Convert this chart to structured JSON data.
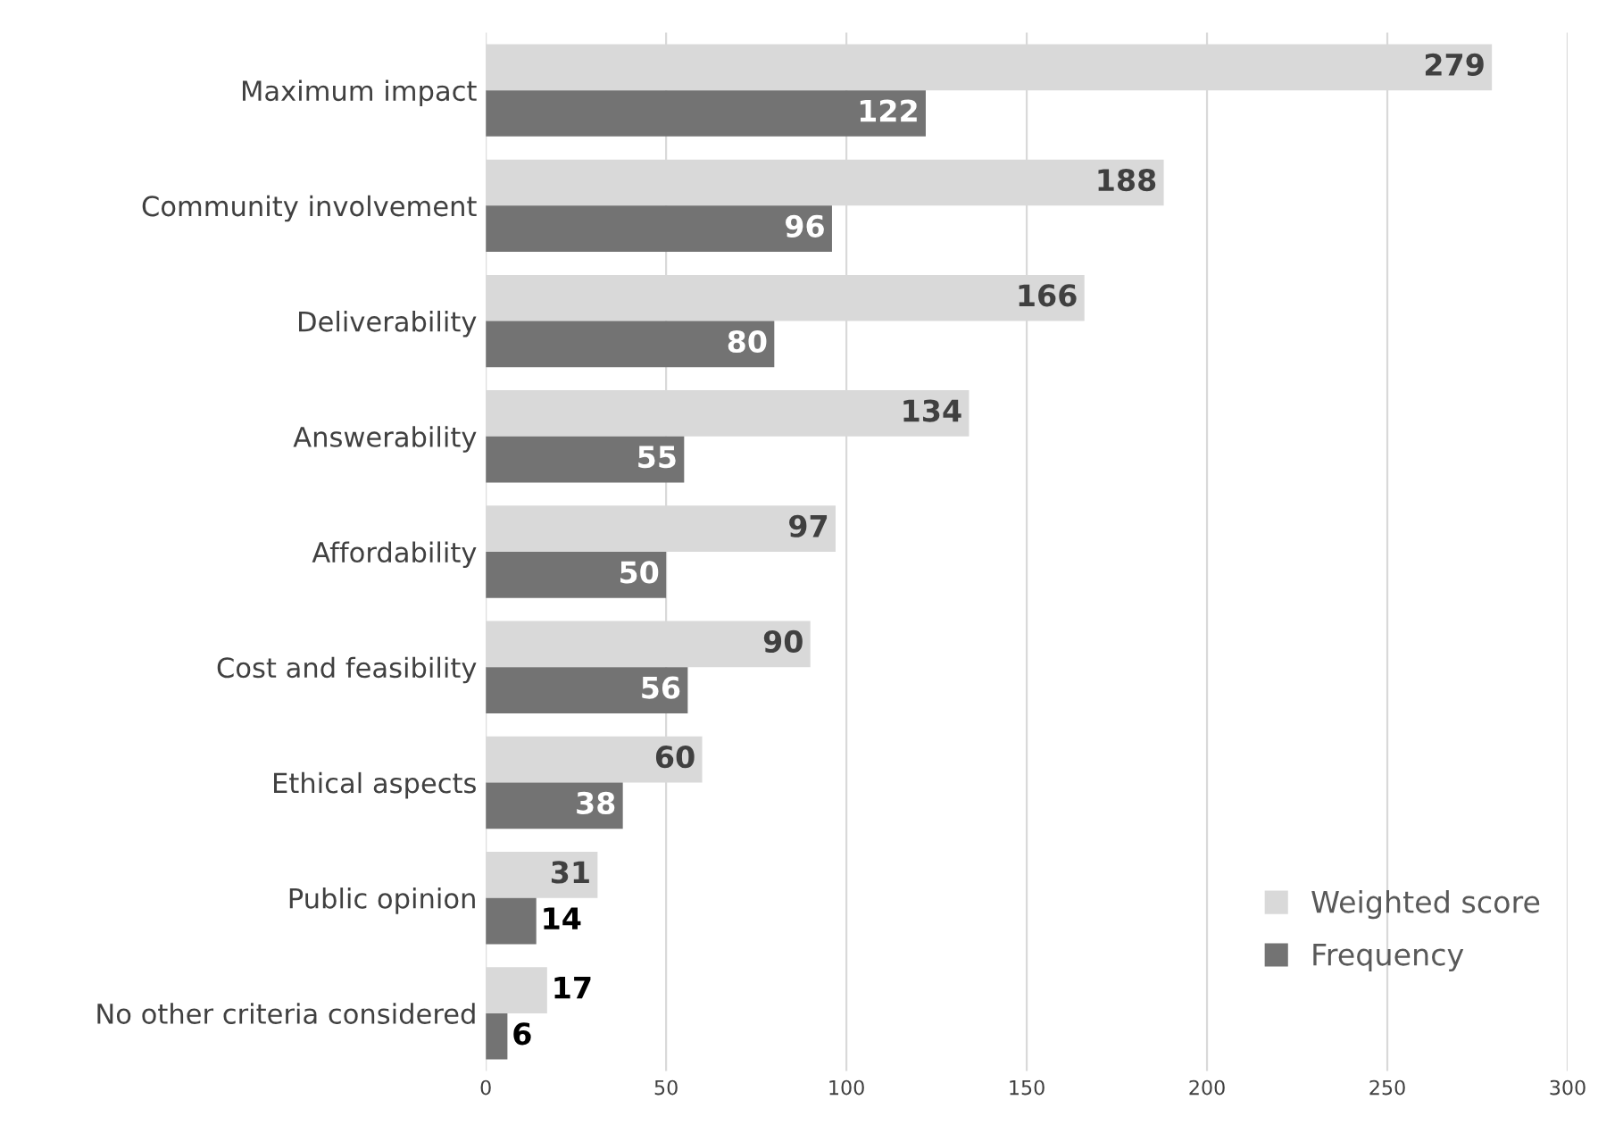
{
  "chart_data": {
    "type": "bar",
    "orientation": "horizontal",
    "categories": [
      "Maximum impact",
      "Community involvement",
      "Deliverability",
      "Answerability",
      "Affordability",
      "Cost and feasibility",
      "Ethical aspects",
      "Public opinion",
      "No other criteria considered"
    ],
    "series": [
      {
        "name": "Weighted score",
        "color": "#d9d9d9",
        "values": [
          279,
          188,
          166,
          134,
          97,
          90,
          60,
          31,
          17
        ]
      },
      {
        "name": "Frequency",
        "color": "#737373",
        "values": [
          122,
          96,
          80,
          55,
          50,
          56,
          38,
          14,
          6
        ]
      }
    ],
    "xlim": [
      0,
      300
    ],
    "xticks": [
      0,
      50,
      100,
      150,
      200,
      250,
      300
    ],
    "grid": "x",
    "legend": "bottom right",
    "data_labels": true
  }
}
